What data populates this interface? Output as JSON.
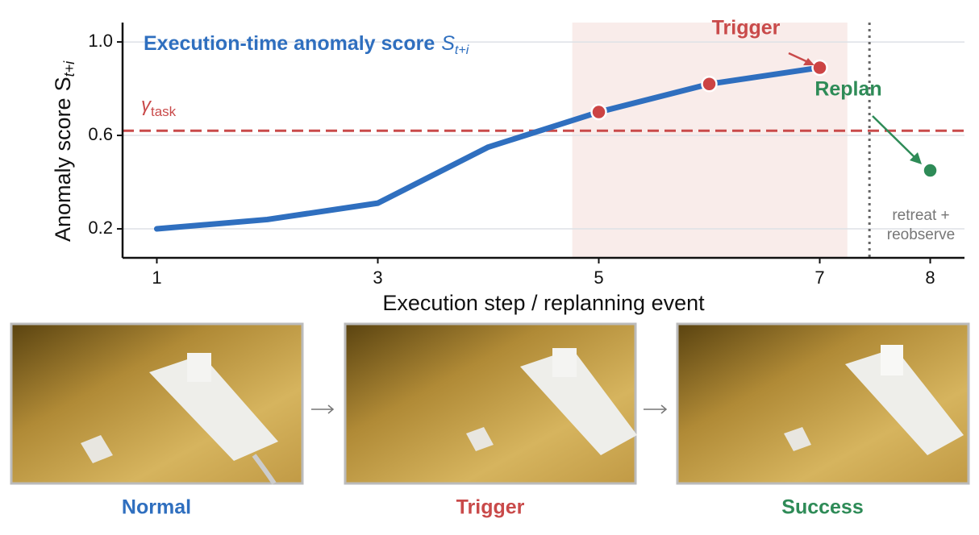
{
  "chart_data": {
    "type": "line",
    "title": "Execution-time anomaly score",
    "title_symbol": "S",
    "title_subscript": "t+i",
    "ylabel": "Anomaly score",
    "ylabel_symbol": "S",
    "ylabel_subscript": "t+i",
    "xlabel": "Execution step / replanning event",
    "xlim": [
      0.69,
      8.31
    ],
    "ylim": [
      0.076,
      1.083
    ],
    "xticks": [
      1,
      3,
      5,
      7,
      8
    ],
    "yticks": [
      0.2,
      0.6,
      {
        "value": 1,
        "label": "1.0"
      }
    ],
    "grid": true,
    "series": [
      {
        "style": "line",
        "color": "#2f6fbf",
        "x": [
          1,
          2,
          3,
          4,
          5,
          6,
          7
        ],
        "values": [
          0.2,
          0.24,
          0.31,
          0.55,
          0.7,
          0.82,
          0.89
        ]
      },
      {
        "style": "markers",
        "color": "#cc4444",
        "x": [
          5,
          6,
          7
        ],
        "values": [
          0.7,
          0.82,
          0.89
        ]
      },
      {
        "style": "markers",
        "color": "#2e8b57",
        "x": [
          8
        ],
        "values": [
          0.45
        ]
      }
    ],
    "threshold": {
      "value": 0.62,
      "color": "#c94a4a",
      "symbol": "γ",
      "subscript": "task"
    },
    "shaded_region": [
      4.76,
      7.25
    ],
    "event_line": 7.45,
    "annotations": {
      "trigger": "Trigger",
      "replan": "Replan",
      "retreat": [
        "retreat +",
        "reobserve"
      ]
    }
  },
  "panels": [
    {
      "caption": "Normal",
      "color": "#2f6fbf"
    },
    {
      "caption": "Trigger",
      "color": "#c94a4a"
    },
    {
      "caption": "Success",
      "color": "#2e8b57"
    }
  ]
}
